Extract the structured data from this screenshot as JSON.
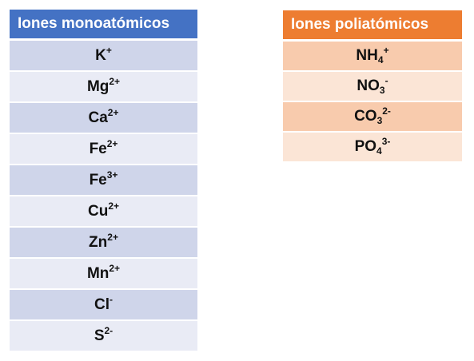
{
  "monoatomic": {
    "header": "Iones monoatómicos",
    "ions": [
      {
        "symbol": "K",
        "sub": "",
        "charge": "+"
      },
      {
        "symbol": "Mg",
        "sub": "",
        "charge": "2+"
      },
      {
        "symbol": "Ca",
        "sub": "",
        "charge": "2+"
      },
      {
        "symbol": "Fe",
        "sub": "",
        "charge": "2+"
      },
      {
        "symbol": "Fe",
        "sub": "",
        "charge": "3+"
      },
      {
        "symbol": "Cu",
        "sub": "",
        "charge": "2+"
      },
      {
        "symbol": "Zn",
        "sub": "",
        "charge": "2+"
      },
      {
        "symbol": "Mn",
        "sub": "",
        "charge": "2+"
      },
      {
        "symbol": "Cl",
        "sub": "",
        "charge": "-"
      },
      {
        "symbol": "S",
        "sub": "",
        "charge": "2-"
      }
    ]
  },
  "polyatomic": {
    "header": "Iones poliatómicos",
    "ions": [
      {
        "symbol": "NH",
        "sub": "4",
        "charge": "+"
      },
      {
        "symbol": "NO",
        "sub": "3",
        "charge": "-"
      },
      {
        "symbol": "CO",
        "sub": "3",
        "charge": "2-"
      },
      {
        "symbol": "PO",
        "sub": "4",
        "charge": "3-"
      }
    ]
  },
  "colors": {
    "mono_header": "#4472c4",
    "mono_row_dark": "#cfd5ea",
    "mono_row_light": "#e9ebf5",
    "poly_header": "#ed7d31",
    "poly_row_dark": "#f8cbad",
    "poly_row_light": "#fbe5d6"
  }
}
